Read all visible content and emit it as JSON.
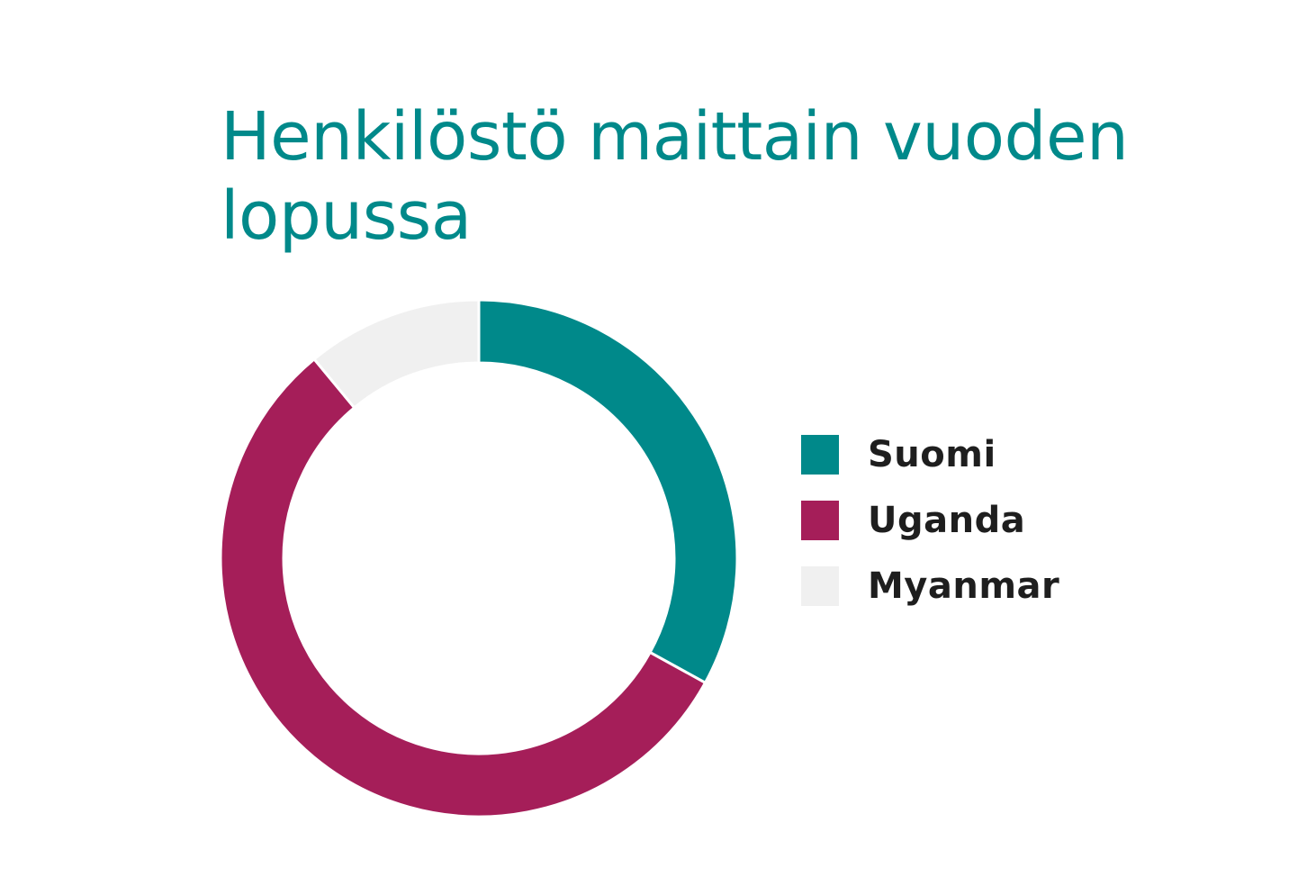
{
  "chart_data": {
    "type": "pie",
    "variant": "donut",
    "title": "Henkilöstö maittain vuoden lopussa",
    "slices": [
      {
        "label": "Suomi",
        "value": 33,
        "color": "#00898a"
      },
      {
        "label": "Uganda",
        "value": 56,
        "color": "#a51e59"
      },
      {
        "label": "Myanmar",
        "value": 11,
        "color": "#f0f0f0"
      }
    ],
    "legend_position": "right"
  }
}
